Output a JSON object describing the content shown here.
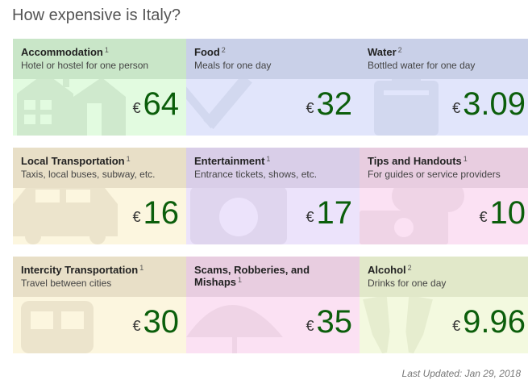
{
  "page": {
    "title": "How expensive is Italy?"
  },
  "currency_symbol": "€",
  "cards": [
    {
      "name": "Accommodation",
      "note": "1",
      "desc": "Hotel or hostel for one person",
      "value": "64",
      "icon": "house-icon",
      "head_color": "#c9e6c8",
      "body_color": "#e2fbe0",
      "icon_color": "#cfe9cd"
    },
    {
      "name": "Food",
      "note": "2",
      "desc": "Meals for one day",
      "value": "32",
      "icon": "fork-knife-icon",
      "head_color": "#c9d0e8",
      "body_color": "#e1e5fb",
      "icon_color": "#d2d8ef"
    },
    {
      "name": "Water",
      "note": "2",
      "desc": "Bottled water for one day",
      "value": "3.09",
      "icon": "water-bottle-icon",
      "head_color": "#c9d0e8",
      "body_color": "#e1e5fb",
      "icon_color": "#d2d8ef"
    },
    {
      "name": "Local Transportation",
      "note": "1",
      "desc": "Taxis, local buses, subway, etc.",
      "value": "16",
      "icon": "taxi-icon",
      "head_color": "#e8dfc7",
      "body_color": "#fcf6df",
      "icon_color": "#ece4cc"
    },
    {
      "name": "Entertainment",
      "note": "1",
      "desc": "Entrance tickets, shows, etc.",
      "value": "17",
      "icon": "camera-icon",
      "head_color": "#d9cee8",
      "body_color": "#ece3fb",
      "icon_color": "#dfd5ee"
    },
    {
      "name": "Tips and Handouts",
      "note": "1",
      "desc": "For guides or service providers",
      "value": "10",
      "icon": "money-icon",
      "head_color": "#e8cde0",
      "body_color": "#fbe1f3",
      "icon_color": "#efd4e6"
    },
    {
      "name": "Intercity Transportation",
      "note": "1",
      "desc": "Travel between cities",
      "value": "30",
      "icon": "train-icon",
      "head_color": "#e8dfc7",
      "body_color": "#fcf6df",
      "icon_color": "#ece4cc"
    },
    {
      "name": "Scams, Robberies, and Mishaps",
      "note": "1",
      "desc": "",
      "value": "35",
      "icon": "umbrella-icon",
      "head_color": "#e8cde0",
      "body_color": "#fbe1f3",
      "icon_color": "#efd4e6"
    },
    {
      "name": "Alcohol",
      "note": "2",
      "desc": "Drinks for one day",
      "value": "9.96",
      "icon": "wine-glasses-icon",
      "head_color": "#e1e8c9",
      "body_color": "#f3f9df",
      "icon_color": "#e6edcf"
    }
  ],
  "footer": {
    "updated": "Last Updated: Jan 29, 2018"
  }
}
